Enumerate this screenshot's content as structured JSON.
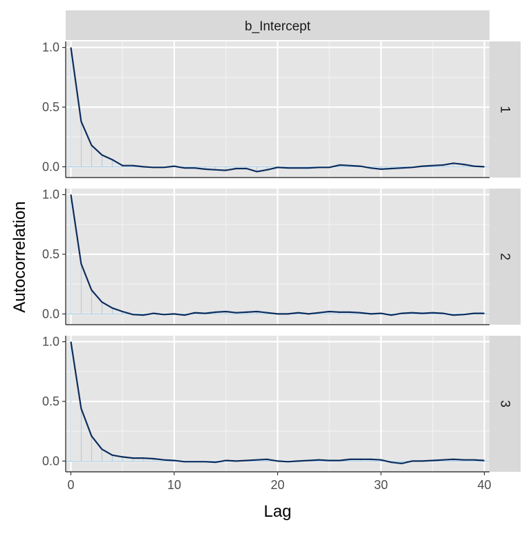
{
  "chart_data": {
    "type": "line",
    "facet_top_label": "b_Intercept",
    "xlabel": "Lag",
    "ylabel": "Autocorrelation",
    "xlim": [
      -0.5,
      40.5
    ],
    "ylim": [
      -0.09,
      1.05
    ],
    "x_ticks": [
      0,
      10,
      20,
      30,
      40
    ],
    "x_tick_labels": [
      "0",
      "10",
      "20",
      "30",
      "40"
    ],
    "y_ticks": [
      0,
      0.5,
      1
    ],
    "y_tick_labels": [
      "0.0",
      "0.5",
      "1.0"
    ],
    "grid": true,
    "style": {
      "panel_bg": "#e5e5e5",
      "strip_bg": "#d9d9d9",
      "line_color": "#0b2d5e",
      "bar_color": "#9cc3de"
    },
    "x": [
      0,
      1,
      2,
      3,
      4,
      5,
      6,
      7,
      8,
      9,
      10,
      11,
      12,
      13,
      14,
      15,
      16,
      17,
      18,
      19,
      20,
      21,
      22,
      23,
      24,
      25,
      26,
      27,
      28,
      29,
      30,
      31,
      32,
      33,
      34,
      35,
      36,
      37,
      38,
      39,
      40
    ],
    "panels": [
      {
        "strip_label": "1",
        "values": [
          1.0,
          0.38,
          0.18,
          0.1,
          0.06,
          0.01,
          0.01,
          0.0,
          -0.005,
          -0.005,
          0.005,
          -0.01,
          -0.01,
          -0.02,
          -0.025,
          -0.03,
          -0.015,
          -0.015,
          -0.04,
          -0.025,
          -0.005,
          -0.01,
          -0.01,
          -0.01,
          -0.005,
          -0.005,
          0.015,
          0.01,
          0.005,
          -0.01,
          -0.02,
          -0.015,
          -0.01,
          -0.005,
          0.005,
          0.01,
          0.015,
          0.03,
          0.02,
          0.005,
          0.0
        ]
      },
      {
        "strip_label": "2",
        "values": [
          1.0,
          0.42,
          0.2,
          0.1,
          0.05,
          0.02,
          -0.005,
          -0.01,
          0.005,
          -0.005,
          0.0,
          -0.01,
          0.01,
          0.005,
          0.015,
          0.02,
          0.01,
          0.015,
          0.02,
          0.01,
          0.0,
          0.0,
          0.01,
          0.0,
          0.01,
          0.02,
          0.015,
          0.015,
          0.01,
          0.0,
          0.005,
          -0.01,
          0.005,
          0.01,
          0.005,
          0.01,
          0.005,
          -0.01,
          -0.005,
          0.005,
          0.005
        ]
      },
      {
        "strip_label": "3",
        "values": [
          1.0,
          0.44,
          0.21,
          0.1,
          0.05,
          0.035,
          0.025,
          0.025,
          0.02,
          0.01,
          0.005,
          -0.005,
          -0.005,
          -0.005,
          -0.01,
          0.005,
          0.0,
          0.005,
          0.01,
          0.015,
          0.0,
          -0.005,
          0.0,
          0.005,
          0.01,
          0.005,
          0.005,
          0.015,
          0.015,
          0.015,
          0.01,
          -0.01,
          -0.02,
          0.0,
          0.0,
          0.005,
          0.01,
          0.015,
          0.01,
          0.01,
          0.005
        ]
      }
    ]
  }
}
